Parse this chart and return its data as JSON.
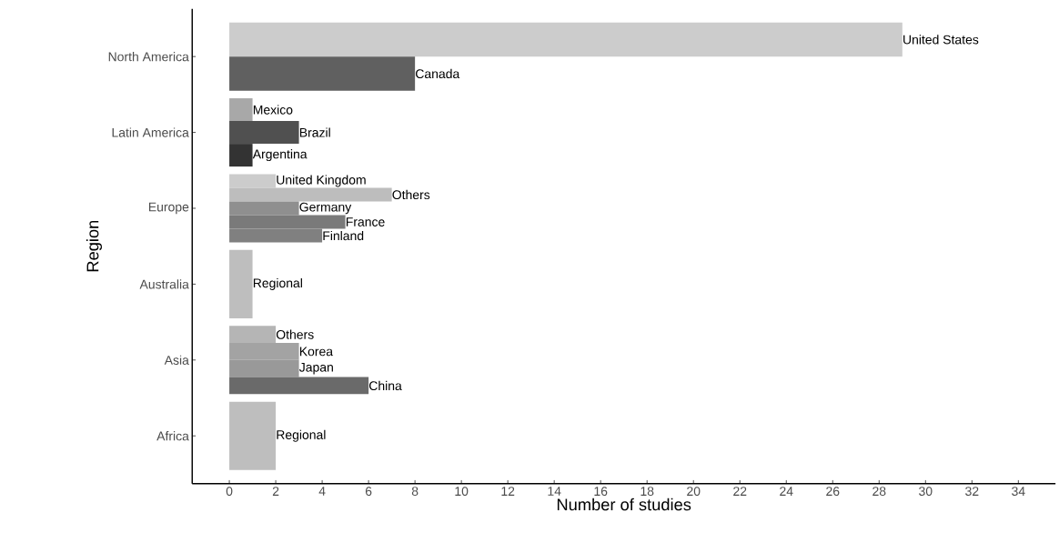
{
  "chart_data": {
    "type": "bar",
    "orientation": "horizontal",
    "xlabel": "Number of studies",
    "ylabel": "Region",
    "categories": [
      "North America",
      "Latin America",
      "Europe",
      "Australia",
      "Asia",
      "Africa"
    ],
    "xlim": [
      -1.6,
      35.6
    ],
    "xticks": [
      0,
      2,
      4,
      6,
      8,
      10,
      12,
      14,
      16,
      18,
      20,
      22,
      24,
      26,
      28,
      30,
      32,
      34
    ],
    "series": [
      {
        "name": "United States",
        "color": "#cccccc",
        "values": [
          29,
          null,
          null,
          null,
          null,
          null
        ]
      },
      {
        "name": "Canada",
        "color": "#606060",
        "values": [
          8,
          null,
          null,
          null,
          null,
          null
        ]
      },
      {
        "name": "Mexico",
        "color": "#a8a8a8",
        "values": [
          null,
          1,
          null,
          null,
          null,
          null
        ]
      },
      {
        "name": "Brazil",
        "color": "#505050",
        "values": [
          null,
          3,
          null,
          null,
          null,
          null
        ]
      },
      {
        "name": "Argentina",
        "color": "#333333",
        "values": [
          null,
          1,
          null,
          null,
          null,
          null
        ]
      },
      {
        "name": "United Kingdom",
        "color": "#cccccc",
        "values": [
          null,
          null,
          2,
          null,
          null,
          null
        ]
      },
      {
        "name": "Others",
        "color": "#bdbdbd",
        "values": [
          null,
          null,
          7,
          null,
          null,
          null
        ]
      },
      {
        "name": "Germany",
        "color": "#8f8f8f",
        "values": [
          null,
          null,
          3,
          null,
          null,
          null
        ]
      },
      {
        "name": "France",
        "color": "#7a7a7a",
        "values": [
          null,
          null,
          5,
          null,
          null,
          null
        ]
      },
      {
        "name": "Finland",
        "color": "#808080",
        "values": [
          null,
          null,
          4,
          null,
          null,
          null
        ]
      },
      {
        "name": "Regional",
        "color": "#bebebe",
        "values": [
          null,
          null,
          null,
          1,
          null,
          null
        ]
      },
      {
        "name": "Others",
        "color": "#b5b5b5",
        "values": [
          null,
          null,
          null,
          null,
          2,
          null
        ]
      },
      {
        "name": "Korea",
        "color": "#a3a3a3",
        "values": [
          null,
          null,
          null,
          null,
          3,
          null
        ]
      },
      {
        "name": "Japan",
        "color": "#999999",
        "values": [
          null,
          null,
          null,
          null,
          3,
          null
        ]
      },
      {
        "name": "China",
        "color": "#6a6a6a",
        "values": [
          null,
          null,
          null,
          null,
          6,
          null
        ]
      },
      {
        "name": "Regional",
        "color": "#bebebe",
        "values": [
          null,
          null,
          null,
          null,
          null,
          2
        ]
      }
    ]
  }
}
